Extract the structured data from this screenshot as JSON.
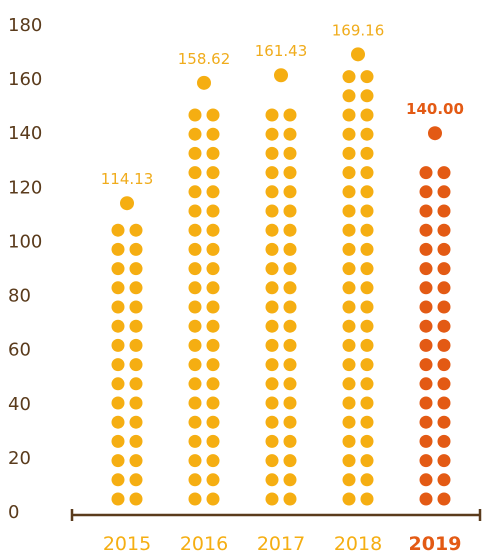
{
  "chart_data": {
    "type": "bar",
    "style": "dot-column",
    "categories": [
      "2015",
      "2016",
      "2017",
      "2018",
      "2019"
    ],
    "values": [
      114.13,
      158.62,
      161.43,
      169.16,
      140.0
    ],
    "data_labels": [
      "114.13",
      "158.62",
      "161.43",
      "169.16",
      "140.00"
    ],
    "highlight_category": "2019",
    "yticks": [
      "0",
      "20",
      "40",
      "60",
      "80",
      "100",
      "120",
      "140",
      "160",
      "180"
    ],
    "ylim": [
      0,
      180
    ],
    "grid": false,
    "legend": "none",
    "title": "",
    "xlabel": "",
    "ylabel": ""
  },
  "colors": {
    "normal": "#f5ae12",
    "highlight": "#e35a14",
    "axis": "#5a3b1c",
    "label_normal": "#f0ac1c",
    "label_highlight": "#e35a14"
  }
}
